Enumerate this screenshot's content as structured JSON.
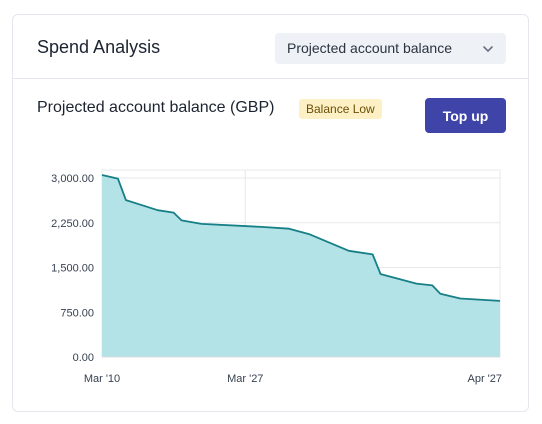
{
  "header": {
    "title": "Spend Analysis",
    "select": {
      "value": "Projected account balance"
    }
  },
  "panel": {
    "subtitle": "Projected account balance (GBP)",
    "badge": "Balance Low",
    "topup_label": "Top up"
  },
  "colors": {
    "area_fill": "#b3e3e6",
    "line": "#177f86",
    "button": "#3f44a8",
    "badge_bg": "#fdf0c4"
  },
  "chart_data": {
    "type": "area",
    "title": "Projected account balance (GBP)",
    "xlabel": "",
    "ylabel": "",
    "ylim": [
      0,
      3000
    ],
    "grid": true,
    "y_ticks": [
      "3,000.00",
      "2,250.00",
      "1,500.00",
      "750.00",
      "0.00"
    ],
    "x_ticks": [
      "Mar '10",
      "Mar '27",
      "Apr '27"
    ],
    "x": [
      0,
      0.04,
      0.06,
      0.14,
      0.18,
      0.2,
      0.25,
      0.4,
      0.47,
      0.52,
      0.62,
      0.68,
      0.7,
      0.79,
      0.83,
      0.85,
      0.9,
      1.0
    ],
    "values": [
      3050,
      2990,
      2630,
      2460,
      2420,
      2290,
      2230,
      2180,
      2150,
      2060,
      1780,
      1720,
      1390,
      1230,
      1200,
      1060,
      980,
      940
    ]
  }
}
